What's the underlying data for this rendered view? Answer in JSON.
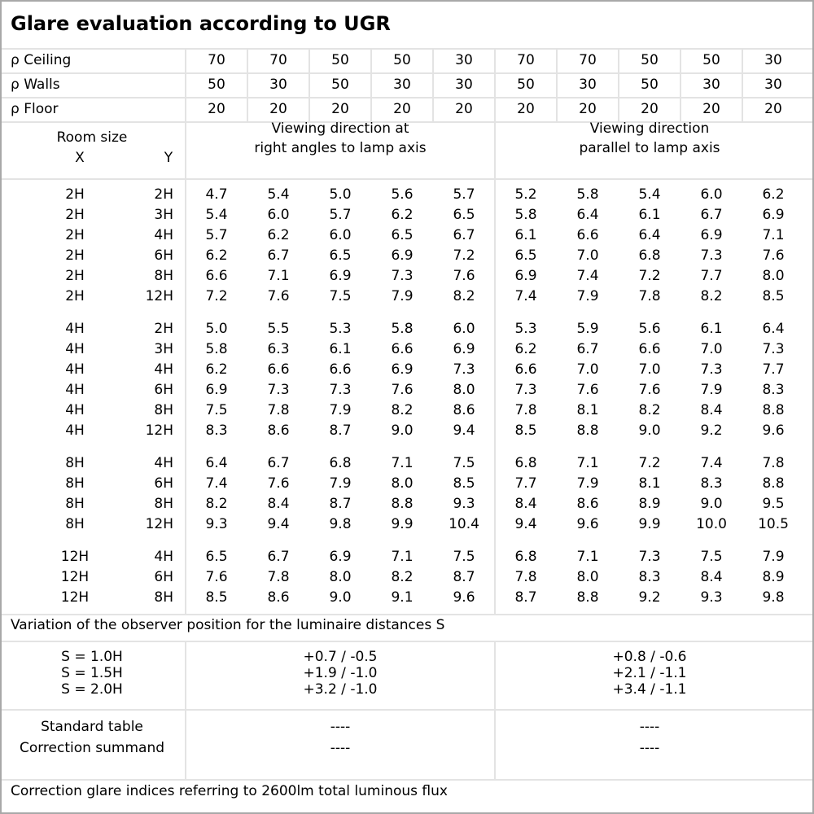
{
  "title": "Glare evaluation according to UGR",
  "reflectances": [
    {
      "label": "ρ Ceiling",
      "values": [
        "70",
        "70",
        "50",
        "50",
        "30",
        "70",
        "70",
        "50",
        "50",
        "30"
      ]
    },
    {
      "label": "ρ Walls",
      "values": [
        "50",
        "30",
        "50",
        "30",
        "30",
        "50",
        "30",
        "50",
        "30",
        "30"
      ]
    },
    {
      "label": "ρ Floor",
      "values": [
        "20",
        "20",
        "20",
        "20",
        "20",
        "20",
        "20",
        "20",
        "20",
        "20"
      ]
    }
  ],
  "header": {
    "room_size": "Room size",
    "x": "X",
    "y": "Y",
    "dir_right_1": "Viewing direction at",
    "dir_right_2": "right angles to lamp axis",
    "dir_parallel_1": "Viewing direction",
    "dir_parallel_2": "parallel to lamp axis"
  },
  "groups": [
    {
      "rows": [
        {
          "x": "2H",
          "y": "2H",
          "values": [
            "4.7",
            "5.4",
            "5.0",
            "5.6",
            "5.7",
            "5.2",
            "5.8",
            "5.4",
            "6.0",
            "6.2"
          ]
        },
        {
          "x": "2H",
          "y": "3H",
          "values": [
            "5.4",
            "6.0",
            "5.7",
            "6.2",
            "6.5",
            "5.8",
            "6.4",
            "6.1",
            "6.7",
            "6.9"
          ]
        },
        {
          "x": "2H",
          "y": "4H",
          "values": [
            "5.7",
            "6.2",
            "6.0",
            "6.5",
            "6.7",
            "6.1",
            "6.6",
            "6.4",
            "6.9",
            "7.1"
          ]
        },
        {
          "x": "2H",
          "y": "6H",
          "values": [
            "6.2",
            "6.7",
            "6.5",
            "6.9",
            "7.2",
            "6.5",
            "7.0",
            "6.8",
            "7.3",
            "7.6"
          ]
        },
        {
          "x": "2H",
          "y": "8H",
          "values": [
            "6.6",
            "7.1",
            "6.9",
            "7.3",
            "7.6",
            "6.9",
            "7.4",
            "7.2",
            "7.7",
            "8.0"
          ]
        },
        {
          "x": "2H",
          "y": "12H",
          "values": [
            "7.2",
            "7.6",
            "7.5",
            "7.9",
            "8.2",
            "7.4",
            "7.9",
            "7.8",
            "8.2",
            "8.5"
          ]
        }
      ]
    },
    {
      "rows": [
        {
          "x": "4H",
          "y": "2H",
          "values": [
            "5.0",
            "5.5",
            "5.3",
            "5.8",
            "6.0",
            "5.3",
            "5.9",
            "5.6",
            "6.1",
            "6.4"
          ]
        },
        {
          "x": "4H",
          "y": "3H",
          "values": [
            "5.8",
            "6.3",
            "6.1",
            "6.6",
            "6.9",
            "6.2",
            "6.7",
            "6.6",
            "7.0",
            "7.3"
          ]
        },
        {
          "x": "4H",
          "y": "4H",
          "values": [
            "6.2",
            "6.6",
            "6.6",
            "6.9",
            "7.3",
            "6.6",
            "7.0",
            "7.0",
            "7.3",
            "7.7"
          ]
        },
        {
          "x": "4H",
          "y": "6H",
          "values": [
            "6.9",
            "7.3",
            "7.3",
            "7.6",
            "8.0",
            "7.3",
            "7.6",
            "7.6",
            "7.9",
            "8.3"
          ]
        },
        {
          "x": "4H",
          "y": "8H",
          "values": [
            "7.5",
            "7.8",
            "7.9",
            "8.2",
            "8.6",
            "7.8",
            "8.1",
            "8.2",
            "8.4",
            "8.8"
          ]
        },
        {
          "x": "4H",
          "y": "12H",
          "values": [
            "8.3",
            "8.6",
            "8.7",
            "9.0",
            "9.4",
            "8.5",
            "8.8",
            "9.0",
            "9.2",
            "9.6"
          ]
        }
      ]
    },
    {
      "rows": [
        {
          "x": "8H",
          "y": "4H",
          "values": [
            "6.4",
            "6.7",
            "6.8",
            "7.1",
            "7.5",
            "6.8",
            "7.1",
            "7.2",
            "7.4",
            "7.8"
          ]
        },
        {
          "x": "8H",
          "y": "6H",
          "values": [
            "7.4",
            "7.6",
            "7.9",
            "8.0",
            "8.5",
            "7.7",
            "7.9",
            "8.1",
            "8.3",
            "8.8"
          ]
        },
        {
          "x": "8H",
          "y": "8H",
          "values": [
            "8.2",
            "8.4",
            "8.7",
            "8.8",
            "9.3",
            "8.4",
            "8.6",
            "8.9",
            "9.0",
            "9.5"
          ]
        },
        {
          "x": "8H",
          "y": "12H",
          "values": [
            "9.3",
            "9.4",
            "9.8",
            "9.9",
            "10.4",
            "9.4",
            "9.6",
            "9.9",
            "10.0",
            "10.5"
          ]
        }
      ]
    },
    {
      "rows": [
        {
          "x": "12H",
          "y": "4H",
          "values": [
            "6.5",
            "6.7",
            "6.9",
            "7.1",
            "7.5",
            "6.8",
            "7.1",
            "7.3",
            "7.5",
            "7.9"
          ]
        },
        {
          "x": "12H",
          "y": "6H",
          "values": [
            "7.6",
            "7.8",
            "8.0",
            "8.2",
            "8.7",
            "7.8",
            "8.0",
            "8.3",
            "8.4",
            "8.9"
          ]
        },
        {
          "x": "12H",
          "y": "8H",
          "values": [
            "8.5",
            "8.6",
            "9.0",
            "9.1",
            "9.6",
            "8.7",
            "8.8",
            "9.2",
            "9.3",
            "9.8"
          ]
        }
      ]
    }
  ],
  "variation": {
    "title": "Variation of the observer position for the luminaire distances S",
    "rows": [
      {
        "label": "S = 1.0H",
        "right": "+0.7 / -0.5",
        "parallel": "+0.8 / -0.6"
      },
      {
        "label": "S = 1.5H",
        "right": "+1.9 / -1.0",
        "parallel": "+2.1 / -1.1"
      },
      {
        "label": "S = 2.0H",
        "right": "+3.2 / -1.0",
        "parallel": "+3.4 / -1.1"
      }
    ]
  },
  "standard": {
    "label1": "Standard table",
    "label2": "Correction summand",
    "right1": "----",
    "right2": "----",
    "parallel1": "----",
    "parallel2": "----"
  },
  "footer": "Correction glare indices referring to 2600lm total luminous flux"
}
